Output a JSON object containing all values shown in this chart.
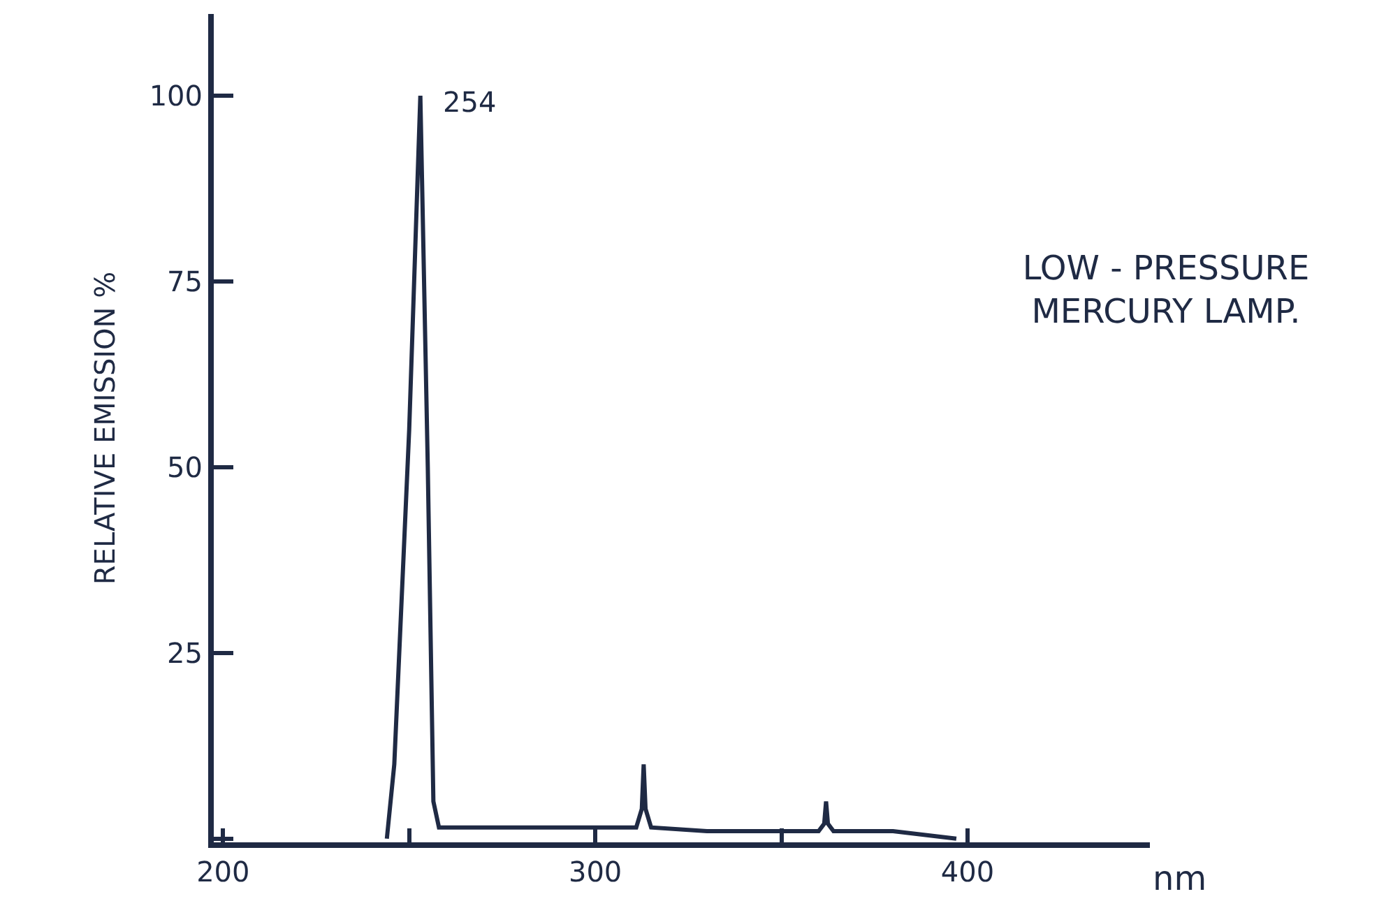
{
  "chart_data": {
    "type": "line",
    "title": "LOW - PRESSURE\nMERCURY LAMP.",
    "xlabel": "nm",
    "ylabel": "RELATIVE EMISSION %",
    "x": [
      244,
      246,
      250,
      253,
      255,
      256.5,
      258,
      270,
      290,
      305,
      311,
      312.5,
      313,
      313.5,
      315,
      330,
      350,
      360,
      361.5,
      362,
      362.5,
      364,
      380,
      397
    ],
    "values": [
      0,
      10,
      55,
      100,
      50,
      5,
      1.5,
      1.5,
      1.5,
      1.5,
      1.5,
      4,
      10,
      4,
      1.5,
      1,
      1,
      1,
      2,
      5,
      2,
      1,
      1,
      0
    ],
    "color": "#1f2a44",
    "xlim": [
      197.5,
      449
    ],
    "ylim": [
      -0.5,
      111
    ],
    "xticks": [
      200,
      {
        "value": 250,
        "label": null
      },
      300,
      {
        "value": 350,
        "label": null
      },
      400
    ],
    "yticks": [
      {
        "value": 0,
        "label": null
      },
      25,
      50,
      75,
      100
    ],
    "annotations": [
      {
        "text": "254",
        "x": 253,
        "y": 100
      }
    ],
    "grid": false,
    "legend": false,
    "marker": "none",
    "line_style": "solid"
  }
}
